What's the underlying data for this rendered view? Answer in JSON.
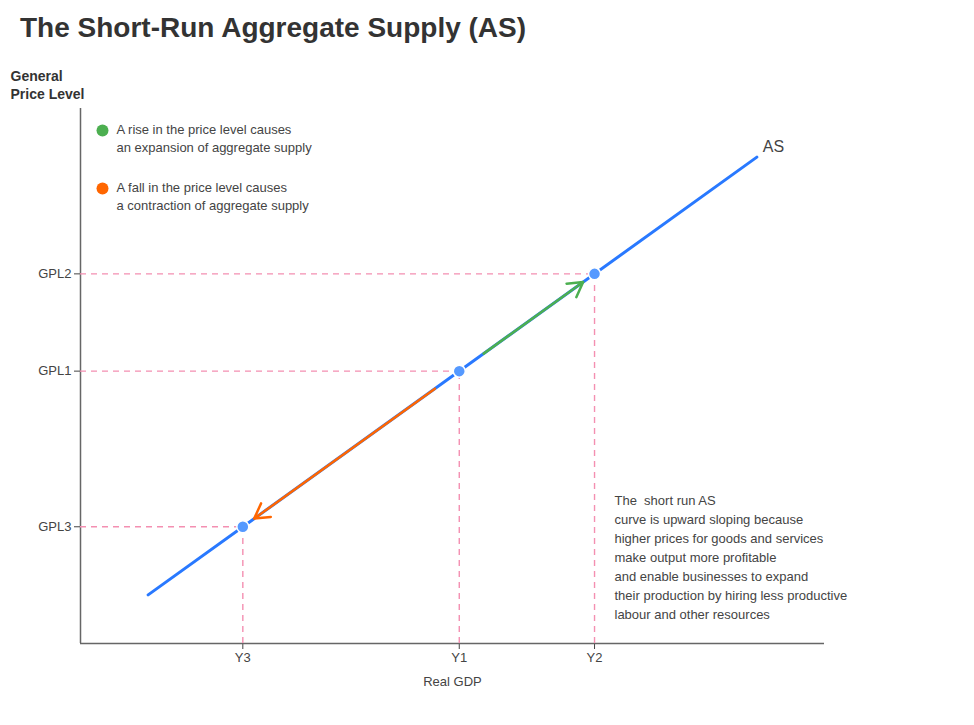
{
  "chart_data": {
    "type": "line",
    "title": "The Short-Run Aggregate Supply (AS)",
    "x_label": "Real GDP",
    "y_label": "General\nPrice Level",
    "xlim": [
      0,
      5.5
    ],
    "ylim": [
      0,
      5.5
    ],
    "xticks": [
      {
        "value": 1.2,
        "label": "Y3"
      },
      {
        "value": 2.8,
        "label": "Y1"
      },
      {
        "value": 3.8,
        "label": "Y2"
      }
    ],
    "yticks": [
      {
        "value": 1.2,
        "label": "GPL3"
      },
      {
        "value": 2.8,
        "label": "GPL1"
      },
      {
        "value": 3.8,
        "label": "GPL2"
      }
    ],
    "grid": false,
    "legend": "upper left",
    "series": [
      {
        "type": "line",
        "label": "AS",
        "color": "#2979ff",
        "x": [
          0.5,
          5.0
        ],
        "values": [
          0.5,
          5.0
        ]
      },
      {
        "type": "reference",
        "line_style": "dashed",
        "color": "#f48fb1",
        "x": [
          1.2,
          2.8,
          3.8
        ],
        "values": [
          1.2,
          2.8,
          3.8
        ]
      },
      {
        "type": "scatter",
        "color": "#5599ff",
        "x": [
          1.2,
          2.8,
          3.8
        ],
        "values": [
          1.2,
          2.8,
          3.8
        ]
      },
      {
        "type": "arrow",
        "name": "A rise in the price level causes\nan expansion of aggregate supply",
        "color": "#4caf50",
        "x": [
          2.8,
          3.8
        ],
        "values": [
          2.8,
          3.8
        ]
      },
      {
        "type": "arrow",
        "name": "A fall in the price level causes\na contraction of aggregate supply",
        "color": "#ff6600",
        "x": [
          2.8,
          1.2
        ],
        "values": [
          2.8,
          1.2
        ]
      }
    ],
    "annotation": "The  short run AS\ncurve is upward sloping because\nhigher prices for goods and services\nmake output more profitable\nand enable businesses to expand\ntheir production by hiring less productive\nlabour and other resources"
  }
}
